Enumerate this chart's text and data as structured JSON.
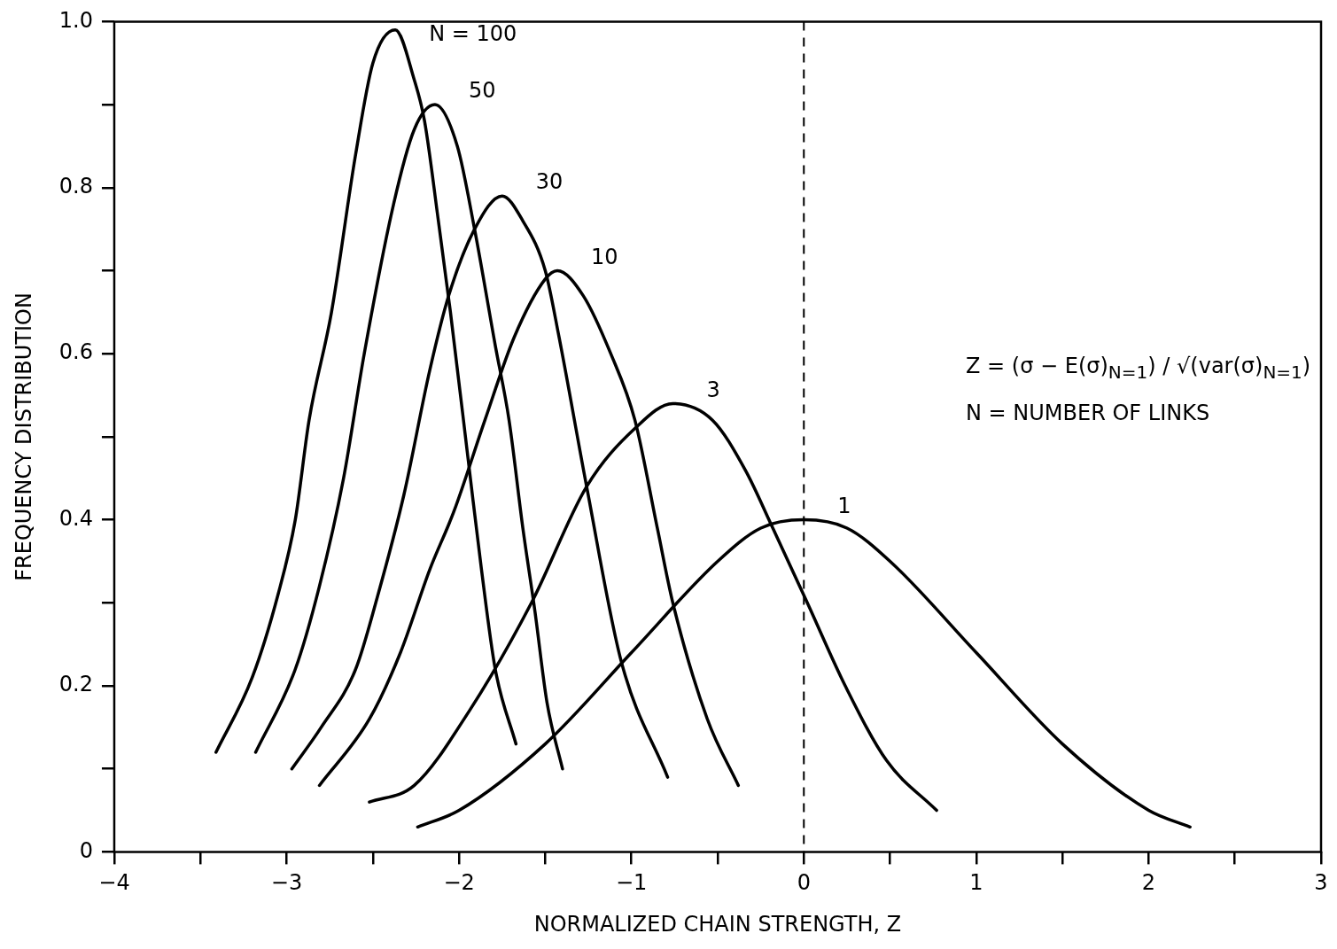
{
  "chart_data": {
    "type": "line",
    "xlabel": "NORMALIZED CHAIN STRENGTH, Z",
    "ylabel": "FREQUENCY DISTRIBUTION",
    "xlim": [
      -4,
      3
    ],
    "ylim": [
      0,
      1
    ],
    "xticks": [
      -4,
      {
        "value": -3.5,
        "label": null
      },
      -3,
      {
        "value": -2.5,
        "label": null
      },
      -2,
      {
        "value": -1.5,
        "label": null
      },
      -1,
      {
        "value": -0.5,
        "label": null
      },
      0,
      {
        "value": 0.5,
        "label": null
      },
      1,
      {
        "value": 1.5,
        "label": null
      },
      2,
      {
        "value": 2.5,
        "label": null
      },
      3
    ],
    "yticks": [
      0,
      {
        "value": 0.1,
        "label": null
      },
      0.2,
      {
        "value": 0.3,
        "label": null
      },
      0.4,
      {
        "value": 0.5,
        "label": null
      },
      0.6,
      {
        "value": 0.7,
        "label": null
      },
      0.8,
      {
        "value": 0.9,
        "label": null
      },
      {
        "value": 1,
        "label": "1.0"
      }
    ],
    "grid": false,
    "legend": false,
    "marker": "none",
    "line_style": "solid",
    "series": [
      {
        "name": "N = 100",
        "color": "#000000",
        "x": [
          -3.41,
          -3.2,
          -3.05,
          -2.95,
          -2.87,
          -2.74,
          -2.6,
          -2.5,
          -2.37,
          -2.26,
          -2.2,
          -2.12,
          -2.05,
          -1.94,
          -1.87,
          -1.79,
          -1.67
        ],
        "values": [
          0.12,
          0.21,
          0.31,
          0.4,
          0.52,
          0.65,
          0.84,
          0.95,
          0.99,
          0.93,
          0.88,
          0.76,
          0.65,
          0.46,
          0.34,
          0.22,
          0.13
        ]
      },
      {
        "name": "50",
        "color": "#000000",
        "x": [
          -3.18,
          -2.95,
          -2.81,
          -2.67,
          -2.55,
          -2.38,
          -2.26,
          -2.14,
          -2.01,
          -1.91,
          -1.79,
          -1.71,
          -1.63,
          -1.56,
          -1.49,
          -1.4
        ],
        "values": [
          0.12,
          0.22,
          0.32,
          0.45,
          0.6,
          0.78,
          0.87,
          0.9,
          0.85,
          0.75,
          0.61,
          0.52,
          0.39,
          0.29,
          0.18,
          0.1
        ]
      },
      {
        "name": "30",
        "color": "#000000",
        "x": [
          -2.97,
          -2.8,
          -2.6,
          -2.47,
          -2.32,
          -2.17,
          -2.06,
          -1.91,
          -1.75,
          -1.63,
          -1.5,
          -1.42,
          -1.26,
          -1.06,
          -0.79
        ],
        "values": [
          0.1,
          0.15,
          0.22,
          0.31,
          0.43,
          0.58,
          0.67,
          0.75,
          0.79,
          0.76,
          0.7,
          0.62,
          0.44,
          0.23,
          0.09
        ]
      },
      {
        "name": "10",
        "color": "#000000",
        "x": [
          -2.81,
          -2.52,
          -2.34,
          -2.17,
          -2.03,
          -1.85,
          -1.68,
          -1.5,
          -1.43,
          -1.28,
          -1.12,
          -0.98,
          -0.85,
          -0.76,
          -0.56,
          -0.38
        ],
        "values": [
          0.08,
          0.16,
          0.24,
          0.34,
          0.41,
          0.52,
          0.62,
          0.69,
          0.7,
          0.67,
          0.6,
          0.52,
          0.39,
          0.3,
          0.16,
          0.08
        ]
      },
      {
        "name": "3",
        "color": "#000000",
        "x": [
          -2.52,
          -2.26,
          -1.94,
          -1.58,
          -1.26,
          -0.98,
          -0.76,
          -0.53,
          -0.34,
          -0.18,
          0.02,
          0.24,
          0.48,
          0.77
        ],
        "values": [
          0.06,
          0.08,
          0.17,
          0.3,
          0.44,
          0.51,
          0.54,
          0.52,
          0.46,
          0.39,
          0.3,
          0.2,
          0.11,
          0.05
        ]
      },
      {
        "name": "1",
        "color": "#000000",
        "x": [
          -2.24,
          -2,
          -1.5,
          -1,
          -0.5,
          -0.25,
          0,
          0.25,
          0.5,
          1,
          1.5,
          2,
          2.24
        ],
        "values": [
          0.03,
          0.05,
          0.13,
          0.24,
          0.35,
          0.39,
          0.4,
          0.39,
          0.35,
          0.24,
          0.13,
          0.05,
          0.03
        ]
      }
    ],
    "ref_lines": [
      {
        "axis": "x",
        "value": 0,
        "line_style": "dashed",
        "color": "#000000"
      }
    ],
    "annotations": [
      "Z = (σ − E(σ)$_{N=1}$) / √(var(σ)$_{N=1}$)",
      "N = NUMBER OF LINKS"
    ]
  }
}
